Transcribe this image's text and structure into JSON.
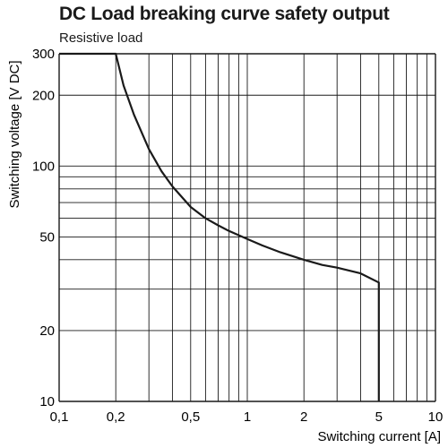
{
  "chart_data": {
    "type": "line",
    "title": "DC Load breaking curve safety output",
    "subtitle": "Resistive load",
    "xlabel": "Switching current [A]",
    "ylabel": "Switching voltage [V DC]",
    "x_scale": "log",
    "y_scale": "log",
    "xlim": [
      0.1,
      10
    ],
    "ylim": [
      10,
      300
    ],
    "x_ticks": [
      {
        "value": 0.1,
        "label": "0,1"
      },
      {
        "value": 0.2,
        "label": "0,2"
      },
      {
        "value": 0.5,
        "label": "0,5"
      },
      {
        "value": 1,
        "label": "1"
      },
      {
        "value": 2,
        "label": "2"
      },
      {
        "value": 5,
        "label": "5"
      },
      {
        "value": 10,
        "label": "10"
      }
    ],
    "y_ticks": [
      {
        "value": 10,
        "label": "10"
      },
      {
        "value": 20,
        "label": "20"
      },
      {
        "value": 50,
        "label": "50"
      },
      {
        "value": 100,
        "label": "100"
      },
      {
        "value": 200,
        "label": "200"
      },
      {
        "value": 300,
        "label": "300"
      }
    ],
    "x_grid": [
      0.1,
      0.2,
      0.3,
      0.4,
      0.5,
      0.6,
      0.7,
      0.8,
      0.9,
      1,
      2,
      3,
      4,
      5,
      6,
      7,
      8,
      9,
      10
    ],
    "y_grid": [
      10,
      20,
      30,
      40,
      50,
      60,
      70,
      80,
      90,
      100,
      200,
      300
    ],
    "grid": true,
    "series": [
      {
        "x": [
          0.1,
          0.2,
          0.22,
          0.25,
          0.3,
          0.35,
          0.4,
          0.5,
          0.6,
          0.7,
          0.8,
          1.0,
          1.2,
          1.5,
          2.0,
          2.5,
          3.0,
          4.0,
          5.0,
          5.0
        ],
        "y": [
          300,
          300,
          220,
          165,
          118,
          95,
          82,
          67,
          60,
          56,
          53,
          49,
          46,
          43,
          40,
          38,
          37,
          35,
          32,
          10
        ]
      }
    ],
    "colors": {
      "curve": "#1a1a1a",
      "grid": "#1a1a1a",
      "background": "#ffffff"
    }
  }
}
